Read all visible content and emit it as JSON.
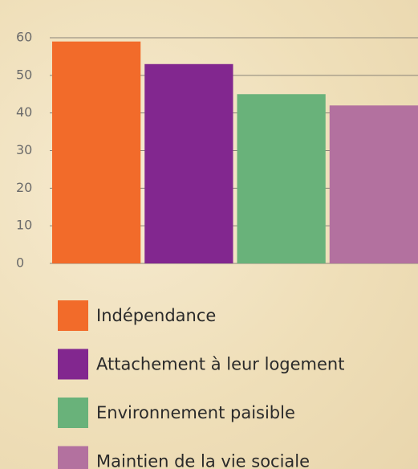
{
  "chart_data": {
    "type": "bar",
    "categories": [
      "Indépendance",
      "Attachement à leur logement",
      "Environnement paisible",
      "Maintien de la vie sociale"
    ],
    "values": [
      59,
      53,
      45,
      42
    ],
    "colors": [
      "#f26b2a",
      "#82278f",
      "#69b27a",
      "#b3719f"
    ],
    "ylim": [
      0,
      60
    ],
    "yticks": [
      0,
      10,
      20,
      30,
      40,
      50,
      60
    ],
    "grid": true,
    "legend": "bottom"
  }
}
